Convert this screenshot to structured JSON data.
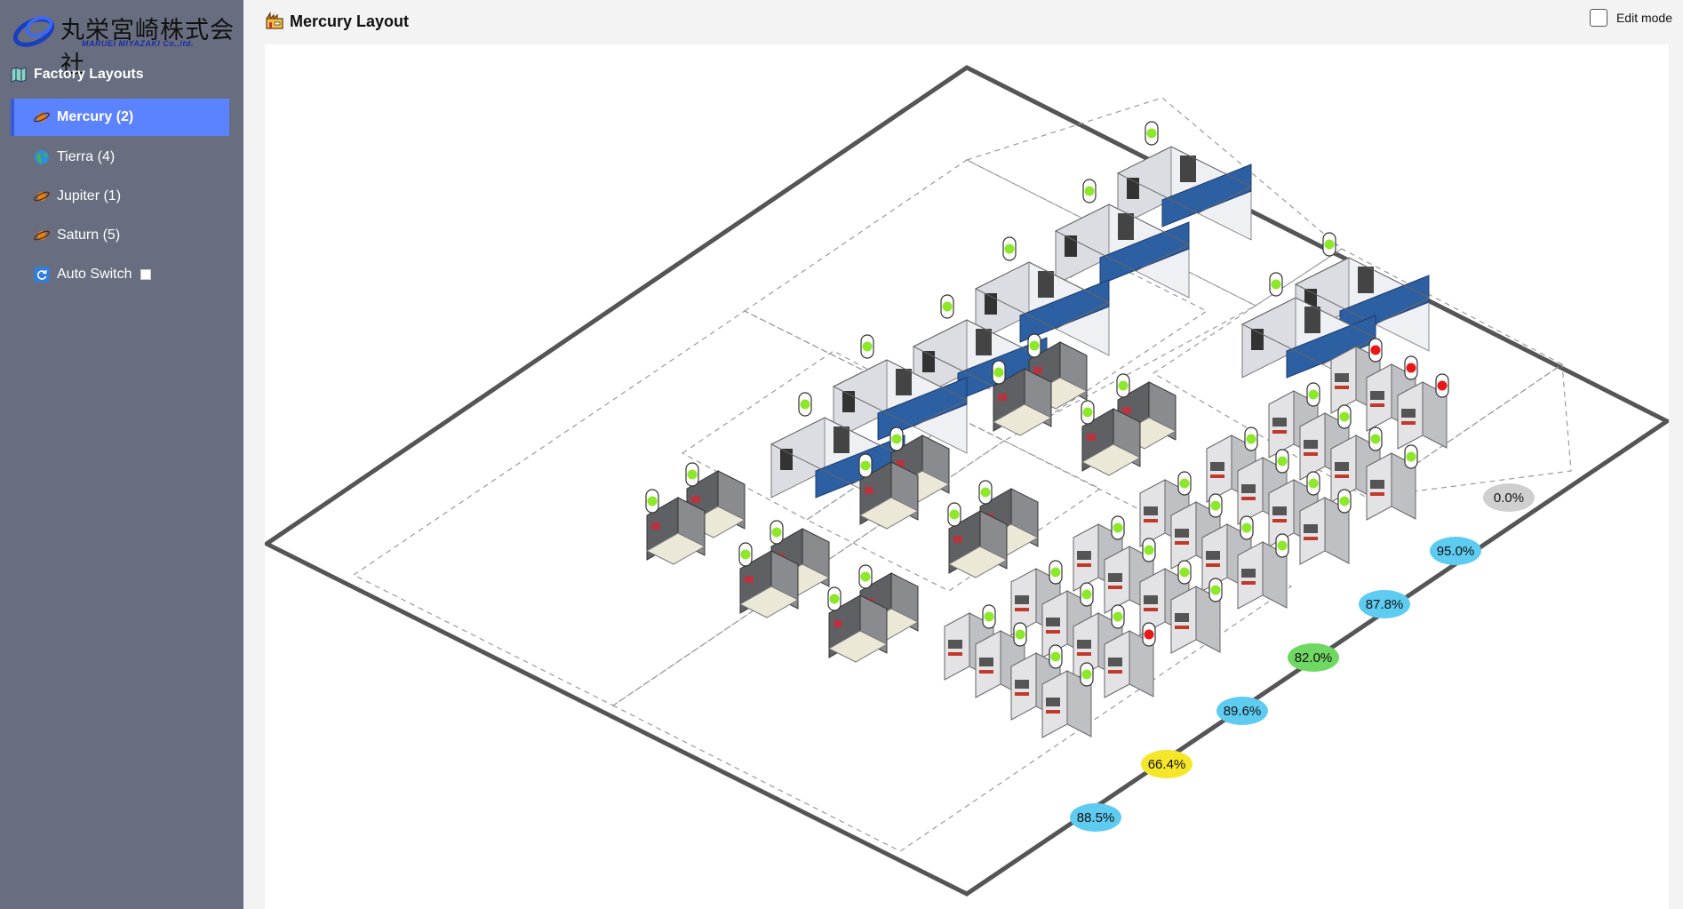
{
  "brand": {
    "name_jp": "丸栄宮崎株式会社",
    "name_en": "MARUEI MIYAZAKI Co.,ltd."
  },
  "sidebar": {
    "section_title": "Factory Layouts",
    "items": [
      {
        "label": "Mercury (2)",
        "icon": "planet-icon",
        "active": true
      },
      {
        "label": "Tierra (4)",
        "icon": "globe-icon",
        "active": false
      },
      {
        "label": "Jupiter (1)",
        "icon": "planet-icon",
        "active": false
      },
      {
        "label": "Saturn (5)",
        "icon": "planet-icon",
        "active": false
      },
      {
        "label": "Auto Switch",
        "icon": "refresh-icon",
        "active": false,
        "checked": false
      }
    ]
  },
  "header": {
    "title": "Mercury Layout",
    "edit_mode_label": "Edit mode",
    "edit_mode_checked": false
  },
  "zone_percentages": [
    {
      "label": "0.0%",
      "color": "#cfcfcf"
    },
    {
      "label": "95.0%",
      "color": "#5ecbf0"
    },
    {
      "label": "87.8%",
      "color": "#5ecbf0"
    },
    {
      "label": "82.0%",
      "color": "#6fd862"
    },
    {
      "label": "89.6%",
      "color": "#5ecbf0"
    },
    {
      "label": "66.4%",
      "color": "#f6e62a"
    },
    {
      "label": "88.5%",
      "color": "#5ecbf0"
    }
  ],
  "status_colors": {
    "running": "#8de82a",
    "stopped": "#e8181a"
  }
}
